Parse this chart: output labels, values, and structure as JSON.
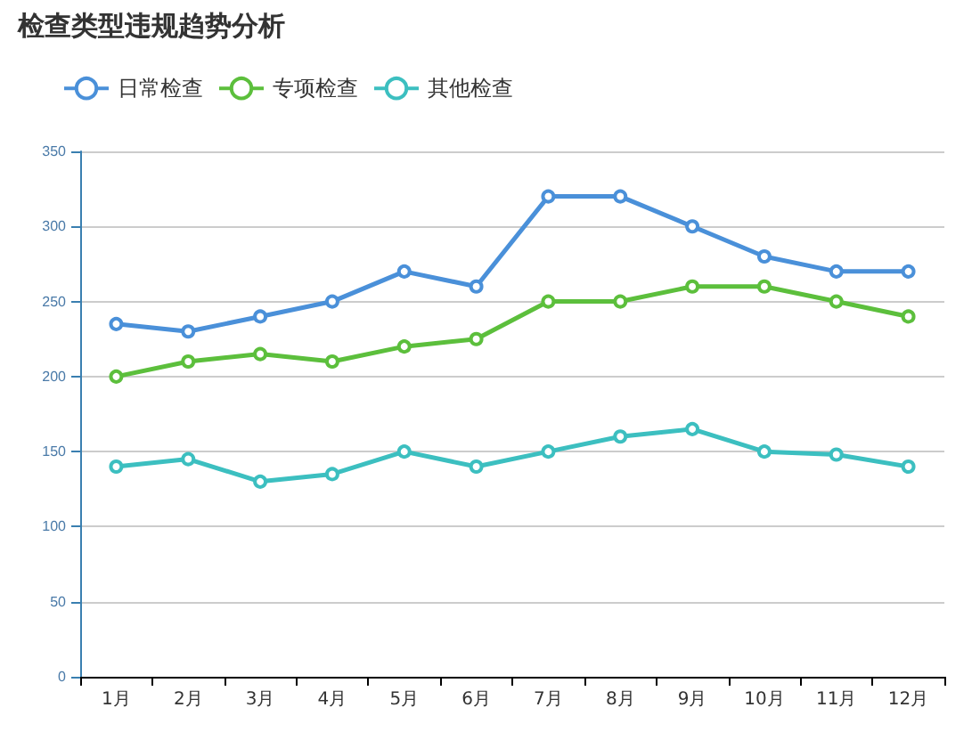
{
  "chart_data": {
    "type": "line",
    "title": "检查类型违规趋势分析",
    "categories": [
      "1月",
      "2月",
      "3月",
      "4月",
      "5月",
      "6月",
      "7月",
      "8月",
      "9月",
      "10月",
      "11月",
      "12月"
    ],
    "series": [
      {
        "name": "日常检查",
        "color": "#4a90d9",
        "values": [
          235,
          230,
          240,
          250,
          270,
          260,
          320,
          320,
          300,
          280,
          270,
          270
        ]
      },
      {
        "name": "专项检查",
        "color": "#5cbf3c",
        "values": [
          200,
          210,
          215,
          210,
          220,
          225,
          250,
          250,
          260,
          260,
          250,
          240
        ]
      },
      {
        "name": "其他检查",
        "color": "#3cbfc0",
        "values": [
          140,
          145,
          130,
          135,
          150,
          140,
          150,
          160,
          165,
          150,
          148,
          140
        ]
      }
    ],
    "ylim": [
      0,
      350
    ],
    "yticks": [
      0,
      50,
      100,
      150,
      200,
      250,
      300,
      350
    ],
    "grid": "y",
    "legend": "top left",
    "marker": "circle"
  }
}
